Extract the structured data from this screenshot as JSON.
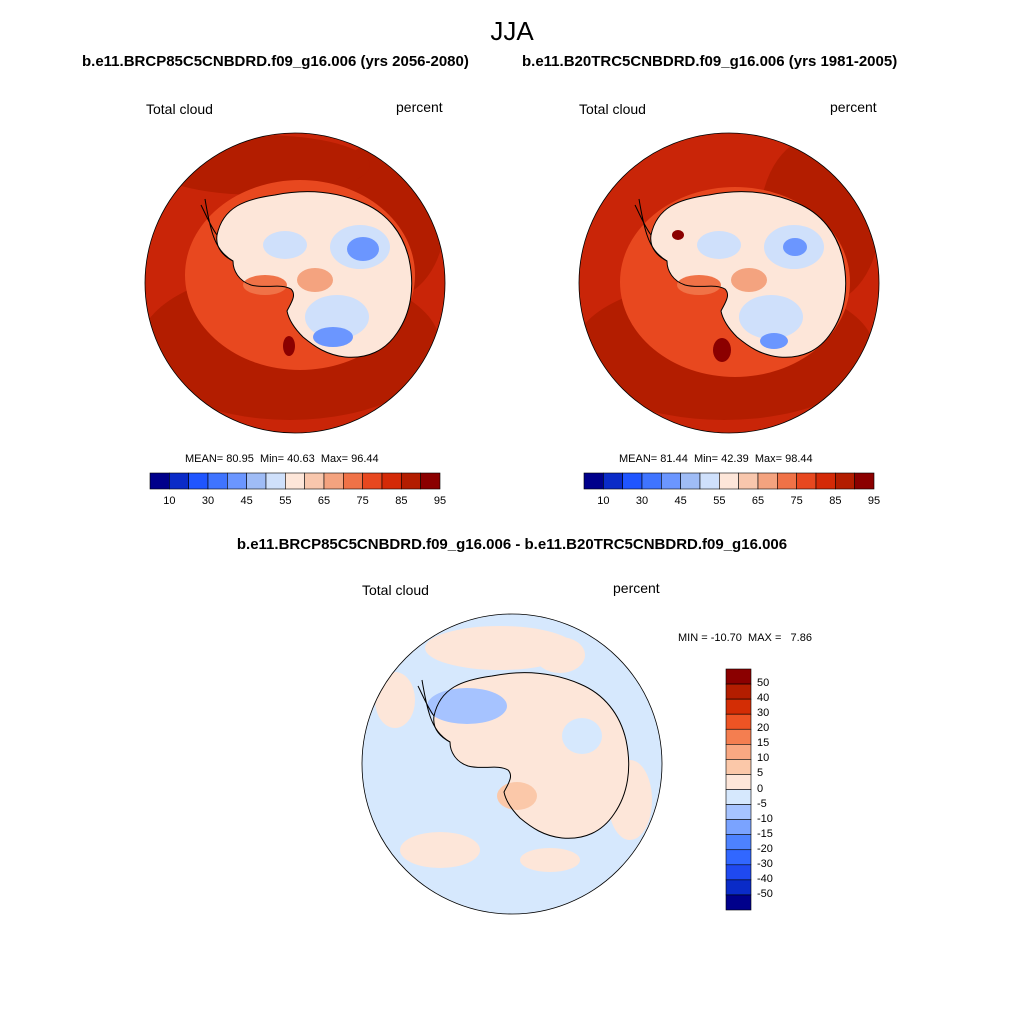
{
  "figure": {
    "season": "JJA",
    "top_left_case": "b.e11.BRCP85C5CNBDRD.f09_g16.006 (yrs 2056-2080)",
    "top_right_case": "b.e11.B20TRC5CNBDRD.f09_g16.006 (yrs 1981-2005)",
    "diff_title": "b.e11.BRCP85C5CNBDRD.f09_g16.006 - b.e11.B20TRC5CNBDRD.f09_g16.006"
  },
  "colors": {
    "abs_scale": [
      "#00008b",
      "#0a2bc8",
      "#1f55ff",
      "#3f74ff",
      "#6b96ff",
      "#9fbcf6",
      "#cfe0fb",
      "#fde6d9",
      "#f8c7ad",
      "#f4a37f",
      "#f07247",
      "#e8481f",
      "#d42a07",
      "#b31d00",
      "#8b0000"
    ],
    "diff_scale": [
      "#00008b",
      "#0a2bc8",
      "#1f49f0",
      "#3167ff",
      "#4d82ff",
      "#7aa3ff",
      "#a6c3ff",
      "#d6e8fd",
      "#fde6d9",
      "#fbc8a9",
      "#f9a882",
      "#f47e50",
      "#ed5424",
      "#d32d05",
      "#b31d00",
      "#8b0000"
    ]
  },
  "chart_data": [
    {
      "type": "heatmap",
      "projection": "south-polar-stereographic",
      "title": "b.e11.BRCP85C5CNBDRD.f09_g16.006 (yrs 2056-2080)",
      "variable": "Total cloud",
      "units": "percent",
      "stats": {
        "mean_label": "MEAN=",
        "mean": "80.95",
        "min_label": "Min=",
        "min": "40.63",
        "max_label": "Max=",
        "max": "96.44"
      },
      "colorbar_ticks": [
        "10",
        "30",
        "45",
        "55",
        "65",
        "75",
        "85",
        "95"
      ]
    },
    {
      "type": "heatmap",
      "projection": "south-polar-stereographic",
      "title": "b.e11.B20TRC5CNBDRD.f09_g16.006 (yrs 1981-2005)",
      "variable": "Total cloud",
      "units": "percent",
      "stats": {
        "mean_label": "MEAN=",
        "mean": "81.44",
        "min_label": "Min=",
        "min": "42.39",
        "max_label": "Max=",
        "max": "98.44"
      },
      "colorbar_ticks": [
        "10",
        "30",
        "45",
        "55",
        "65",
        "75",
        "85",
        "95"
      ]
    },
    {
      "type": "heatmap",
      "projection": "south-polar-stereographic",
      "title": "b.e11.BRCP85C5CNBDRD.f09_g16.006 - b.e11.B20TRC5CNBDRD.f09_g16.006",
      "variable": "Total cloud",
      "units": "percent",
      "stats": {
        "min_label": "MIN =",
        "min": "-10.70",
        "max_label": "MAX =",
        "max": "7.86"
      },
      "colorbar_ticks": [
        "50",
        "40",
        "30",
        "20",
        "15",
        "10",
        "5",
        "0",
        "-5",
        "-10",
        "-15",
        "-20",
        "-30",
        "-40",
        "-50"
      ]
    }
  ]
}
